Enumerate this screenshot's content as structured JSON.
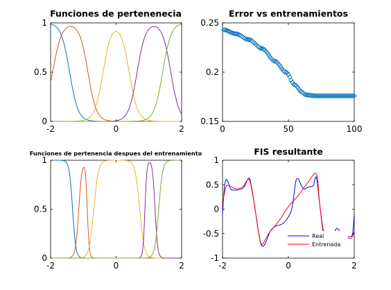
{
  "colors": {
    "c1": "#0072BD",
    "c2": "#D95319",
    "c3": "#EDB120",
    "c4": "#7E2F8E",
    "c5": "#77AC30",
    "fis_real": "#0000FF",
    "fis_trained": "#FF0000"
  },
  "chart_data": [
    {
      "type": "line",
      "title": "Funciones de pertenenecia",
      "xlim": [
        -2,
        2
      ],
      "ylim": [
        0,
        1
      ],
      "xticks": [
        "-2",
        "0",
        "2"
      ],
      "yticks": [
        "0",
        "0.5",
        "1"
      ],
      "grid": false,
      "series": [
        {
          "kind": "left",
          "c": -1.42,
          "w": 0.13
        },
        {
          "kind": "bump",
          "c1": -1.94,
          "w1": 0.14,
          "c2": -0.86,
          "w2": 0.13
        },
        {
          "kind": "bump",
          "c1": -0.4,
          "w1": 0.13,
          "c2": 0.4,
          "w2": 0.13
        },
        {
          "kind": "bump",
          "c1": 0.64,
          "w1": 0.13,
          "c2": 1.67,
          "w2": 0.13
        },
        {
          "kind": "right",
          "c": 1.42,
          "w": 0.13
        }
      ]
    },
    {
      "type": "scatter",
      "title": "Error vs entrenamientos",
      "xlim": [
        0,
        100
      ],
      "ylim": [
        0.15,
        0.25
      ],
      "xticks": [
        "0",
        "50",
        "100"
      ],
      "yticks": [
        "0.15",
        "0.2",
        "0.25"
      ],
      "grid": false,
      "marker": "diamond",
      "x_start": 1,
      "x_end": 100,
      "y_start": 0.243,
      "y_end": 0.176,
      "y_points": [
        [
          1,
          0.243
        ],
        [
          10,
          0.239
        ],
        [
          20,
          0.233
        ],
        [
          30,
          0.224
        ],
        [
          40,
          0.211
        ],
        [
          48,
          0.2
        ],
        [
          55,
          0.187
        ],
        [
          60,
          0.18
        ],
        [
          63,
          0.177
        ],
        [
          70,
          0.176
        ],
        [
          80,
          0.176
        ],
        [
          90,
          0.176
        ],
        [
          100,
          0.176
        ]
      ]
    },
    {
      "type": "line",
      "title": "Funciones de pertenencia despues del entrenamiento",
      "xlim": [
        -2,
        2
      ],
      "ylim": [
        0,
        1
      ],
      "xticks": [
        "-2",
        "0",
        "2"
      ],
      "yticks": [
        "0",
        "0.5",
        "1"
      ],
      "grid": false,
      "series": [
        {
          "kind": "left",
          "c": -1.33,
          "w": 0.05
        },
        {
          "kind": "bump",
          "c1": -1.14,
          "w1": 0.05,
          "c2": -0.88,
          "w2": 0.03
        },
        {
          "kind": "bump",
          "c1": -0.68,
          "w1": 0.07,
          "c2": 0.72,
          "w2": 0.07
        },
        {
          "kind": "bump",
          "c1": 0.88,
          "w1": 0.03,
          "c2": 1.19,
          "w2": 0.04
        },
        {
          "kind": "right",
          "c": 1.3,
          "w": 0.06
        }
      ]
    },
    {
      "type": "line",
      "title": "FIS resultante",
      "xlim": [
        -2,
        2
      ],
      "ylim": [
        -1,
        1
      ],
      "xticks": [
        "-2",
        "0",
        "2"
      ],
      "yticks": [
        "-1",
        "-0.5",
        "0",
        "0.5",
        "1"
      ],
      "grid": false,
      "legend": "bottom-right",
      "series": [
        {
          "name": "Real",
          "points": [
            [
              -2.0,
              -0.1
            ],
            [
              -1.95,
              0.4
            ],
            [
              -1.9,
              0.6
            ],
            [
              -1.83,
              0.55
            ],
            [
              -1.75,
              0.41
            ],
            [
              -1.65,
              0.39
            ],
            [
              -1.5,
              0.4
            ],
            [
              -1.35,
              0.45
            ],
            [
              -1.2,
              0.64
            ],
            [
              -1.12,
              0.45
            ],
            [
              -1.0,
              -0.05
            ],
            [
              -0.88,
              -0.58
            ],
            [
              -0.8,
              -0.75
            ],
            [
              -0.7,
              -0.7
            ],
            [
              -0.55,
              -0.45
            ],
            [
              -0.4,
              -0.35
            ],
            [
              -0.25,
              -0.32
            ],
            [
              -0.1,
              -0.25
            ],
            [
              0.1,
              0.0
            ],
            [
              0.22,
              0.55
            ],
            [
              0.3,
              0.62
            ],
            [
              0.38,
              0.5
            ],
            [
              0.48,
              0.41
            ],
            [
              0.6,
              0.45
            ],
            [
              0.75,
              0.48
            ],
            [
              0.85,
              0.65
            ],
            [
              0.95,
              0.1
            ],
            [
              1.05,
              -0.4
            ],
            [
              1.15,
              -0.62
            ],
            [
              1.25,
              -0.78
            ],
            [
              1.35,
              -0.6
            ],
            [
              1.45,
              -0.4
            ],
            [
              1.55,
              -0.45
            ],
            [
              1.68,
              -0.72
            ],
            [
              1.78,
              -0.58
            ],
            [
              1.88,
              -0.56
            ],
            [
              1.95,
              -0.5
            ],
            [
              2.0,
              -0.1
            ]
          ]
        },
        {
          "name": "Entrenada",
          "points": [
            [
              -2.0,
              0.1
            ],
            [
              -1.9,
              0.45
            ],
            [
              -1.8,
              0.48
            ],
            [
              -1.6,
              0.42
            ],
            [
              -1.4,
              0.45
            ],
            [
              -1.2,
              0.61
            ],
            [
              -1.1,
              0.35
            ],
            [
              -1.0,
              -0.05
            ],
            [
              -0.9,
              -0.5
            ],
            [
              -0.8,
              -0.72
            ],
            [
              -0.6,
              -0.5
            ],
            [
              -0.3,
              -0.25
            ],
            [
              0.0,
              0.05
            ],
            [
              0.3,
              0.28
            ],
            [
              0.6,
              0.55
            ],
            [
              0.85,
              0.72
            ],
            [
              0.95,
              0.1
            ],
            [
              1.05,
              -0.45
            ],
            [
              1.15,
              -0.65
            ],
            [
              1.3,
              -0.62
            ],
            [
              1.5,
              -0.5
            ],
            [
              1.7,
              -0.55
            ],
            [
              1.9,
              -0.6
            ],
            [
              2.0,
              -0.45
            ]
          ]
        }
      ]
    }
  ]
}
